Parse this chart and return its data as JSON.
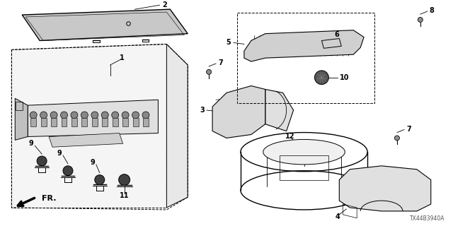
{
  "bg_color": "#ffffff",
  "line_color": "#000000",
  "diagram_code": "TX44B3940A",
  "fr_label": "FR.",
  "parts": {
    "lid_color": "#d8d8d8",
    "box_color": "#f0f0f0"
  }
}
